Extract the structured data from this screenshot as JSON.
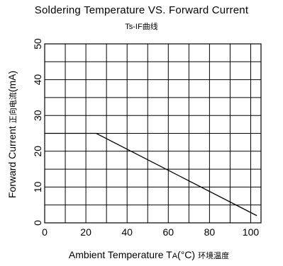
{
  "chart_data": {
    "type": "line",
    "title": "Soldering Temperature VS. Forward Current",
    "subtitle": "Ts-IF曲线",
    "xlabel_main": "Ambient Temperature T",
    "xlabel_sub": "A",
    "xlabel_unit": "(°C)",
    "xlabel_cn": "环境温度",
    "ylabel_main": "Forward Current",
    "ylabel_cn": "正向电流",
    "ylabel_unit": "(mA)",
    "xlim": [
      0,
      105
    ],
    "ylim": [
      0,
      50
    ],
    "x_major_ticks": [
      0,
      20,
      40,
      60,
      80,
      100
    ],
    "x_grid_step": 10,
    "y_major_ticks": [
      0,
      10,
      20,
      30,
      40,
      50
    ],
    "y_grid_step": 5,
    "grid": true,
    "series": [
      {
        "x": [
          0,
          25,
          103
        ],
        "y": [
          25,
          25,
          2
        ]
      }
    ]
  }
}
